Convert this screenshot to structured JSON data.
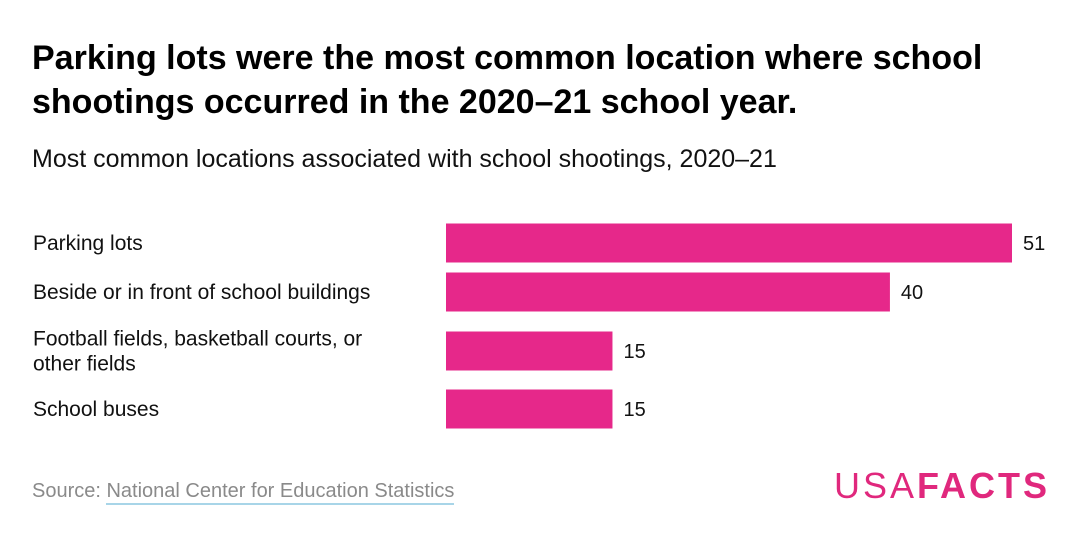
{
  "title": "Parking lots were the most common location where school shootings occurred in the 2020–21 school year.",
  "subtitle": "Most common locations associated with school shootings, 2020–21",
  "chart_data": {
    "type": "bar",
    "orientation": "horizontal",
    "categories": [
      [
        "Parking lots"
      ],
      [
        "Beside or in front of school buildings"
      ],
      [
        "Football fields, basketball courts, or",
        "other fields"
      ],
      [
        "School buses"
      ]
    ],
    "values": [
      51,
      40,
      15,
      15
    ],
    "data_labels": [
      "51",
      "40",
      "15",
      "15"
    ],
    "bar_color": "#e6288a",
    "grid": false,
    "legend": "none"
  },
  "footer": {
    "source_prefix": "Source: ",
    "source_link": "National Center for Education Statistics"
  },
  "logo": {
    "part1": "USA",
    "part2": "FACTS",
    "color": "#e0287d"
  }
}
